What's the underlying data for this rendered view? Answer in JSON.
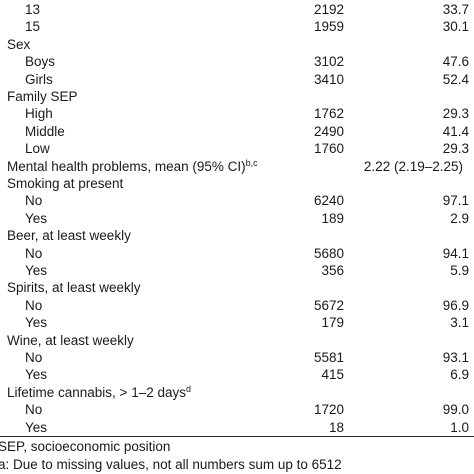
{
  "rows": [
    {
      "label": "13",
      "n": "2192",
      "pct": "33.7"
    },
    {
      "label": "15",
      "n": "1959",
      "pct": "30.1"
    },
    {
      "label": "Sex",
      "heading": true
    },
    {
      "label": "Boys",
      "n": "3102",
      "pct": "47.6"
    },
    {
      "label": "Girls",
      "n": "3410",
      "pct": "52.4"
    },
    {
      "label": "Family SEP",
      "heading": true
    },
    {
      "label": "High",
      "n": "1762",
      "pct": "29.3"
    },
    {
      "label": "Middle",
      "n": "2490",
      "pct": "41.4"
    },
    {
      "label": "Low",
      "n": "1760",
      "pct": "29.3"
    },
    {
      "label": "Mental health problems, mean (95% CI)",
      "sup": "b,c",
      "heading": true,
      "ci": "2.22 (2.19–2.25)"
    },
    {
      "label": "Smoking at present",
      "heading": true
    },
    {
      "label": "No",
      "n": "6240",
      "pct": "97.1"
    },
    {
      "label": "Yes",
      "n": "189",
      "pct": "2.9"
    },
    {
      "label": "Beer, at least weekly",
      "heading": true
    },
    {
      "label": "No",
      "n": "5680",
      "pct": "94.1"
    },
    {
      "label": "Yes",
      "n": "356",
      "pct": "5.9"
    },
    {
      "label": "Spirits, at least weekly",
      "heading": true
    },
    {
      "label": "No",
      "n": "5672",
      "pct": "96.9"
    },
    {
      "label": "Yes",
      "n": "179",
      "pct": "3.1"
    },
    {
      "label": "Wine, at least weekly",
      "heading": true
    },
    {
      "label": "No",
      "n": "5581",
      "pct": "93.1"
    },
    {
      "label": "Yes",
      "n": "415",
      "pct": "6.9"
    },
    {
      "label": "Lifetime cannabis, > 1–2 days",
      "sup": "d",
      "heading": true
    },
    {
      "label": "No",
      "n": "1720",
      "pct": "99.0"
    },
    {
      "label": "Yes",
      "n": "18",
      "pct": "1.0"
    }
  ],
  "footnotes": [
    "SEP, socioeconomic position",
    "a: Due to missing values, not all numbers sum up to 6512"
  ]
}
